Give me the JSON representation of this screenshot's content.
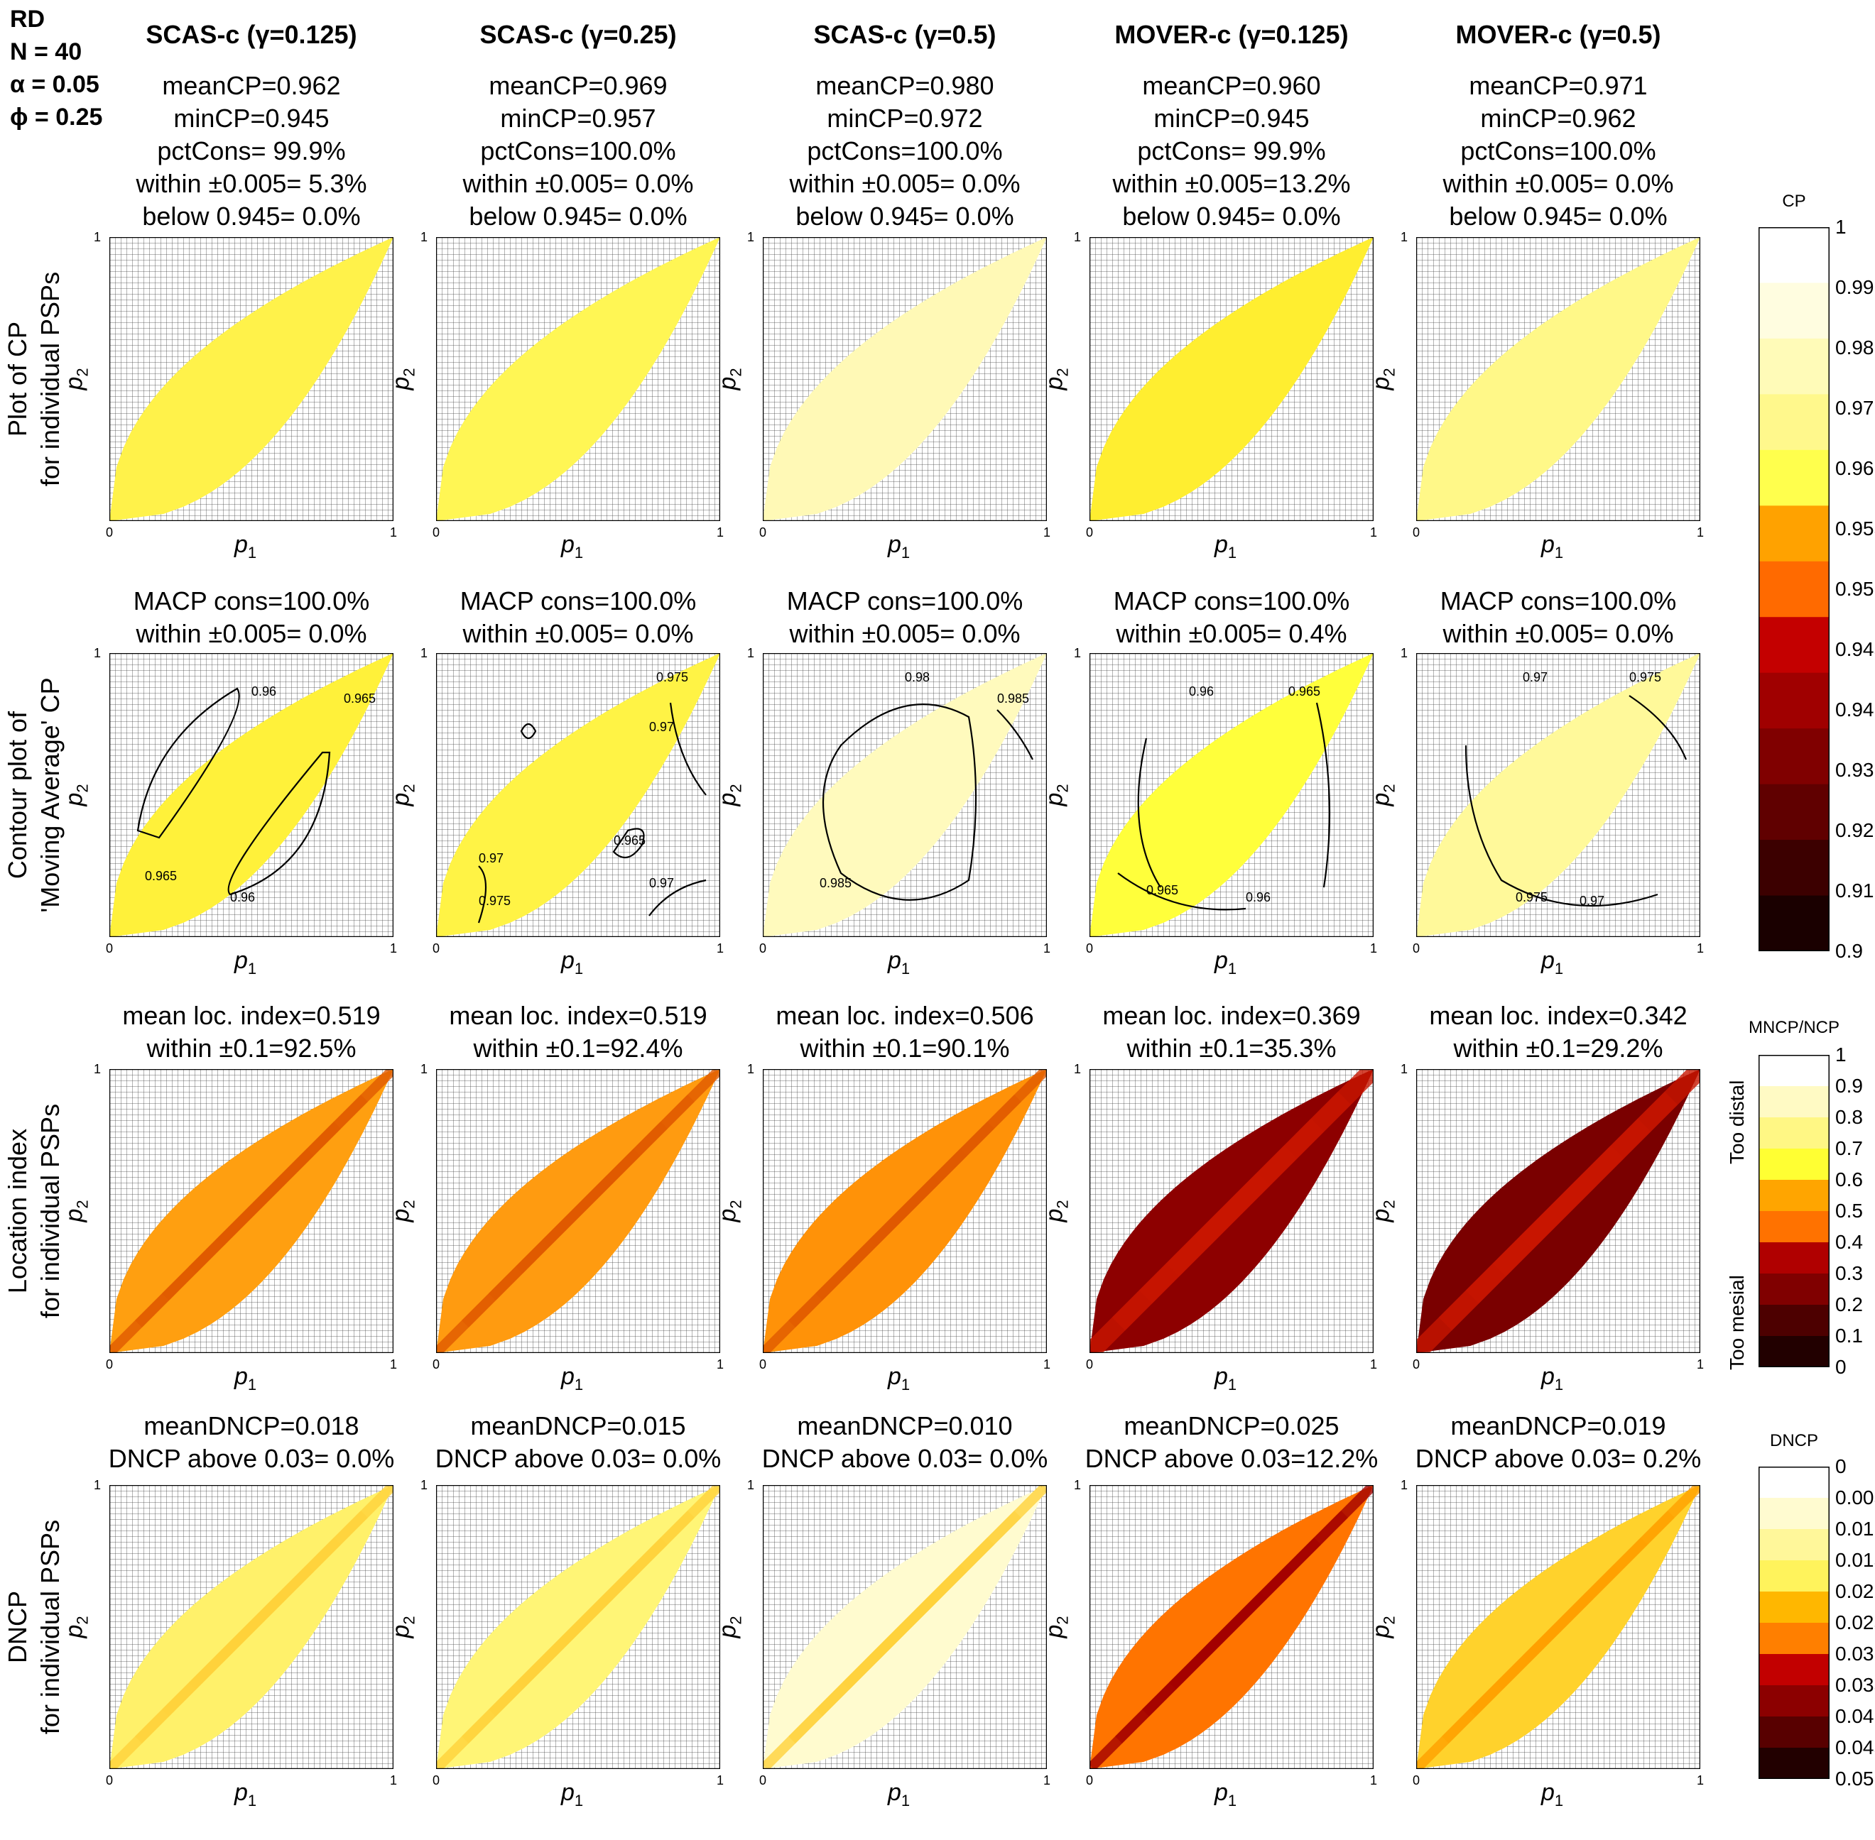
{
  "header": {
    "lines": [
      "RD",
      "N = 40",
      "α = 0.05",
      "ϕ = 0.25"
    ]
  },
  "columns": [
    {
      "title": "SCAS-c (γ=0.125)",
      "stats1": [
        "meanCP=0.962",
        "minCP=0.945",
        "pctCons= 99.9%",
        "within ±0.005= 5.3%",
        "below 0.945= 0.0%"
      ],
      "stats2": [
        "MACP cons=100.0%",
        "within ±0.005= 0.0%"
      ],
      "stats3": [
        "mean loc. index=0.519",
        "within ±0.1=92.5%"
      ],
      "stats4": [
        "meanDNCP=0.018",
        "DNCP above 0.03= 0.0%"
      ]
    },
    {
      "title": "SCAS-c (γ=0.25)",
      "stats1": [
        "meanCP=0.969",
        "minCP=0.957",
        "pctCons=100.0%",
        "within ±0.005= 0.0%",
        "below 0.945= 0.0%"
      ],
      "stats2": [
        "MACP cons=100.0%",
        "within ±0.005= 0.0%"
      ],
      "stats3": [
        "mean loc. index=0.519",
        "within ±0.1=92.4%"
      ],
      "stats4": [
        "meanDNCP=0.015",
        "DNCP above 0.03= 0.0%"
      ]
    },
    {
      "title": "SCAS-c (γ=0.5)",
      "stats1": [
        "meanCP=0.980",
        "minCP=0.972",
        "pctCons=100.0%",
        "within ±0.005= 0.0%",
        "below 0.945= 0.0%"
      ],
      "stats2": [
        "MACP cons=100.0%",
        "within ±0.005= 0.0%"
      ],
      "stats3": [
        "mean loc. index=0.506",
        "within ±0.1=90.1%"
      ],
      "stats4": [
        "meanDNCP=0.010",
        "DNCP above 0.03= 0.0%"
      ]
    },
    {
      "title": "MOVER-c (γ=0.125)",
      "stats1": [
        "meanCP=0.960",
        "minCP=0.945",
        "pctCons= 99.9%",
        "within ±0.005=13.2%",
        "below 0.945= 0.0%"
      ],
      "stats2": [
        "MACP cons=100.0%",
        "within ±0.005= 0.4%"
      ],
      "stats3": [
        "mean loc. index=0.369",
        "within ±0.1=35.3%"
      ],
      "stats4": [
        "meanDNCP=0.025",
        "DNCP above 0.03=12.2%"
      ]
    },
    {
      "title": "MOVER-c (γ=0.5)",
      "stats1": [
        "meanCP=0.971",
        "minCP=0.962",
        "pctCons=100.0%",
        "within ±0.005= 0.0%",
        "below 0.945= 0.0%"
      ],
      "stats2": [
        "MACP cons=100.0%",
        "within ±0.005= 0.0%"
      ],
      "stats3": [
        "mean loc. index=0.342",
        "within ±0.1=29.2%"
      ],
      "stats4": [
        "meanDNCP=0.019",
        "DNCP above 0.03= 0.2%"
      ]
    }
  ],
  "row_labels": [
    [
      "Plot of CP",
      "for individual PSPs"
    ],
    [
      "Contour plot of",
      "'Moving Average' CP"
    ],
    [
      "Location index",
      "for individual PSPs"
    ],
    [
      "DNCP",
      "for individual PSPs"
    ]
  ],
  "axes": {
    "xlabel": "p",
    "xsub": "1",
    "ylabel": "p",
    "ysub": "2",
    "tick0": "0",
    "tick1": "1"
  },
  "contour_labels": [
    [
      "0.96",
      "0.965",
      "0.965",
      "0.96"
    ],
    [
      "0.975",
      "0.97",
      "0.965",
      "0.97",
      "0.97",
      "0.975"
    ],
    [
      "0.98",
      "0.985",
      "0.985"
    ],
    [
      "0.96",
      "0.965",
      "0.965",
      "0.96"
    ],
    [
      "0.97",
      "0.975",
      "0.975",
      "0.97"
    ]
  ],
  "colorbars": {
    "cp": {
      "title": "CP",
      "labels": [
        "1",
        "0.99",
        "0.98",
        "0.97",
        "0.96",
        "0.955",
        "0.95",
        "0.945",
        "0.94",
        "0.93",
        "0.92",
        "0.91",
        "0.9"
      ],
      "colors": [
        "#ffffff",
        "#fffde0",
        "#fffbb8",
        "#fff88c",
        "#ffff4d",
        "#ffa200",
        "#ff6a00",
        "#c40000",
        "#a00000",
        "#800000",
        "#600000",
        "#3c0000",
        "#1a0000"
      ]
    },
    "loc": {
      "title": "MNCP/NCP",
      "labels": [
        "1",
        "0.9",
        "0.8",
        "0.7",
        "0.6",
        "0.5",
        "0.4",
        "0.3",
        "0.2",
        "0.1",
        "0"
      ],
      "top_side": "Too distal",
      "bottom_side": "Too mesial",
      "colors": [
        "#ffffff",
        "#fffac4",
        "#fff784",
        "#ffff33",
        "#ffa500",
        "#ff7200",
        "#b00000",
        "#800000",
        "#4d0000",
        "#220000"
      ]
    },
    "dncp": {
      "title": "DNCP",
      "labels": [
        "0",
        "0.005",
        "0.01",
        "0.015",
        "0.02",
        "0.025",
        "0.03",
        "0.035",
        "0.04",
        "0.045",
        "0.05"
      ],
      "colors": [
        "#ffffff",
        "#fffbd0",
        "#fff79a",
        "#fff35c",
        "#ffb700",
        "#ff7f00",
        "#c20000",
        "#8c0000",
        "#580000",
        "#220000"
      ]
    }
  },
  "chart_data": {
    "type": "heatmap",
    "rows": [
      "CP",
      "Moving Average CP",
      "Location index",
      "DNCP"
    ],
    "methods": [
      "SCAS-c (γ=0.125)",
      "SCAS-c (γ=0.25)",
      "SCAS-c (γ=0.5)",
      "MOVER-c (γ=0.125)",
      "MOVER-c (γ=0.5)"
    ],
    "xlim": [
      0,
      1
    ],
    "ylim": [
      0,
      1
    ],
    "fill_colors": {
      "cp": [
        "#fff24a",
        "#fff654",
        "#fff9b6",
        "#ffee30",
        "#fff888"
      ],
      "macp": [
        "#fff13a",
        "#fff345",
        "#fffabd",
        "#ffff3b",
        "#fff99a"
      ],
      "loc": [
        "#ff9f10",
        "#ff9b10",
        "#ff9208",
        "#8d0000",
        "#7a0000"
      ],
      "dncp": [
        "#fff16a",
        "#fff576",
        "#fffbcf",
        "#ff7400",
        "#ffd22c"
      ]
    }
  }
}
